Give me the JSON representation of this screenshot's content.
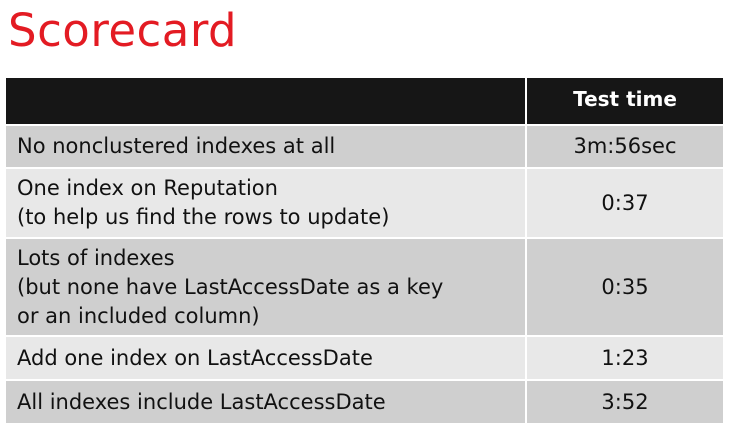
{
  "title": "Scorecard",
  "table": {
    "headers": {
      "description": "",
      "test_time": "Test time"
    },
    "rows": [
      {
        "lines": [
          "No nonclustered indexes at all"
        ],
        "time": "3m:56sec"
      },
      {
        "lines": [
          "One index on Reputation",
          "(to help us find the rows to update)"
        ],
        "time": "0:37"
      },
      {
        "lines": [
          "Lots of indexes",
          "(but none have LastAccessDate as a key",
          "or an included column)"
        ],
        "time": "0:35"
      },
      {
        "lines": [
          "Add one index on LastAccessDate"
        ],
        "time": "1:23"
      },
      {
        "lines": [
          "All indexes include LastAccessDate"
        ],
        "time": "3:52"
      }
    ]
  },
  "colors": {
    "title": "#e31b23",
    "header_background": "#161616",
    "row_dark": "#cfcfcf",
    "row_light": "#e8e8e8"
  }
}
